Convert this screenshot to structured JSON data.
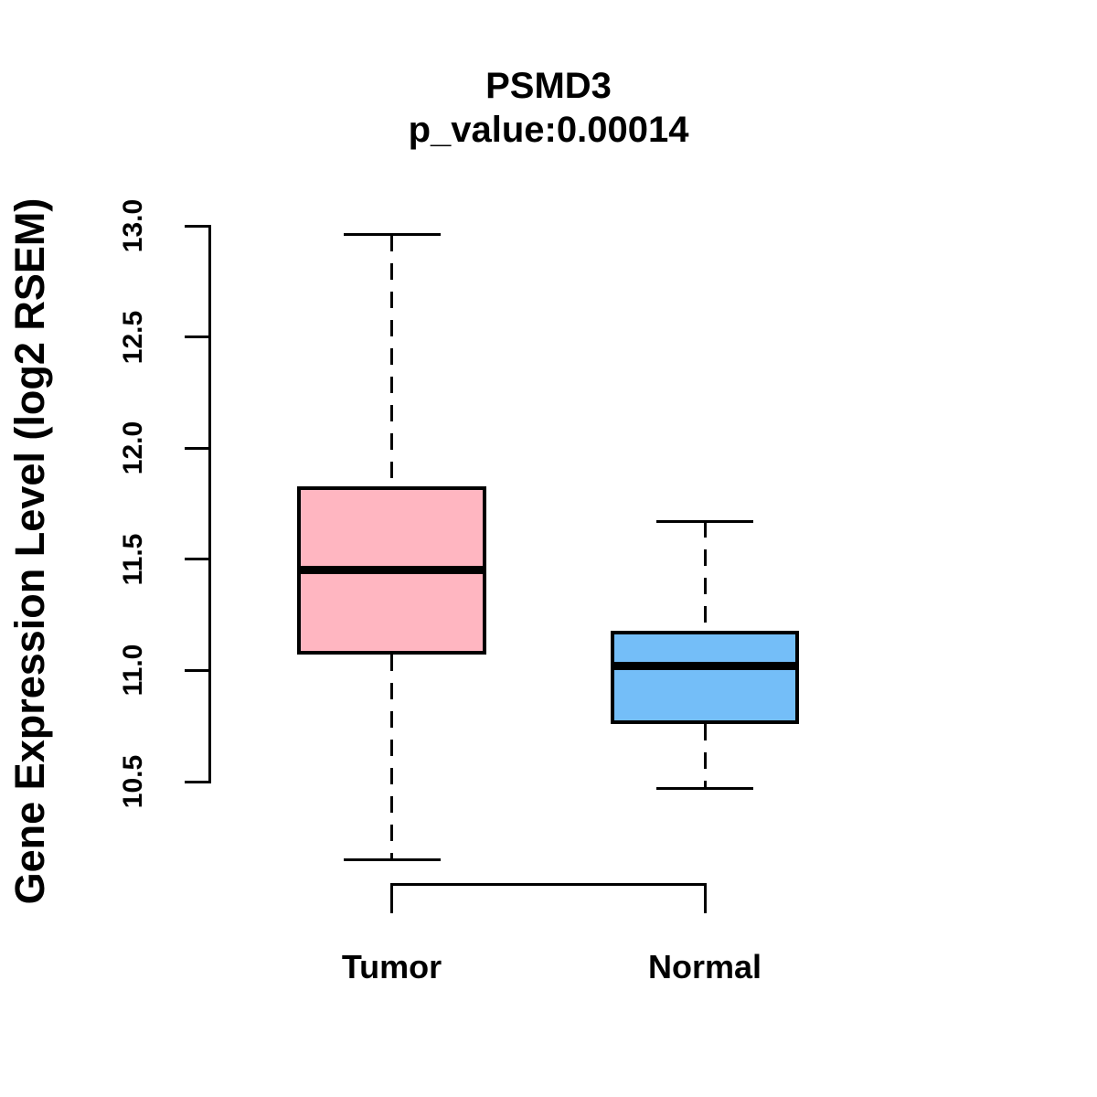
{
  "figure": {
    "title": "PSMD3",
    "subtitle": "p_value:0.00014",
    "ylabel": "Gene Expression Level (log2 RSEM)"
  },
  "chart_data": {
    "type": "boxplot",
    "title": "PSMD3",
    "subtitle": "p_value:0.00014",
    "xlabel": "",
    "ylabel": "Gene Expression Level (log2 RSEM)",
    "ylim": [
      10.5,
      13.0
    ],
    "yticks": [
      10.5,
      11.0,
      11.5,
      12.0,
      12.5,
      13.0
    ],
    "ytick_format_decimals": 1,
    "grid": false,
    "legend": "none",
    "categories": [
      "Tumor",
      "Normal"
    ],
    "series": [
      {
        "name": "Tumor",
        "box_color": "#FFB6C1",
        "whisker_low": 10.15,
        "q1": 11.07,
        "median": 11.45,
        "q3": 11.83,
        "whisker_high": 12.96
      },
      {
        "name": "Normal",
        "box_color": "#74BEF8",
        "whisker_low": 10.47,
        "q1": 10.76,
        "median": 11.02,
        "q3": 11.18,
        "whisker_high": 11.67
      }
    ],
    "line_color": "#000000",
    "background_color": "#FFFFFF"
  }
}
